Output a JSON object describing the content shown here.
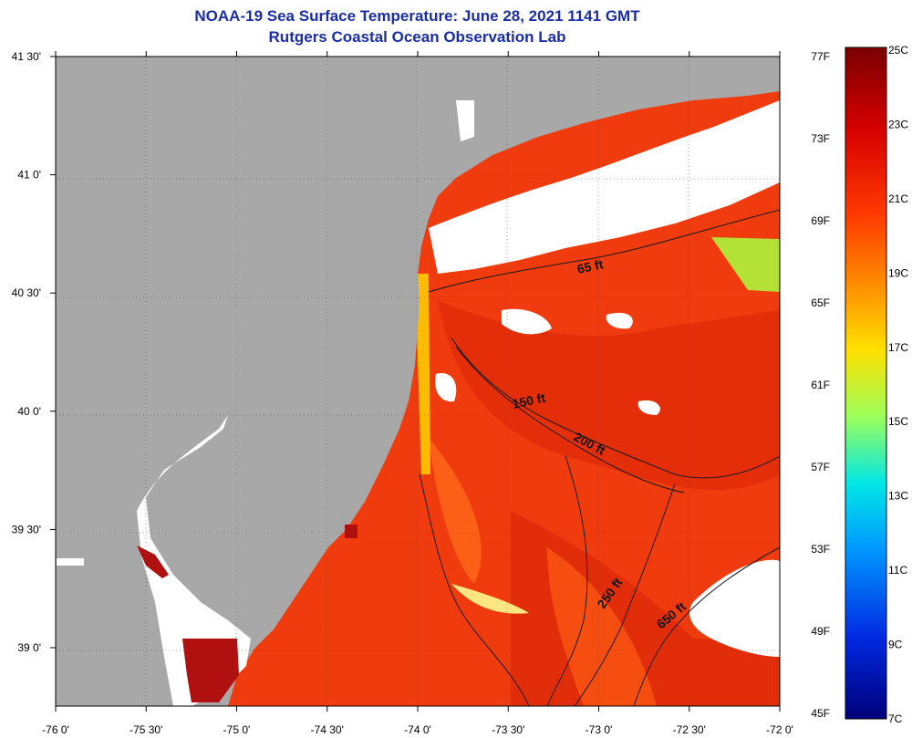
{
  "header": {
    "title": "NOAA-19 Sea Surface Temperature:  June 28, 2021 1141 GMT",
    "subtitle": "Rutgers Coastal Ocean Observation Lab"
  },
  "axes": {
    "lon_ticks": [
      "-76 0'",
      "-75 30'",
      "-75 0'",
      "-74 30'",
      "-74 0'",
      "-73 30'",
      "-73 0'",
      "-72 30'",
      "-72 0'"
    ],
    "lat_ticks": [
      "41 30'",
      "41 0'",
      "40 30'",
      "40 0'",
      "39 30'",
      "39 0'"
    ]
  },
  "contours": {
    "labels": [
      "65 ft",
      "150 ft",
      "200 ft",
      "250 ft",
      "650 ft"
    ]
  },
  "colorbar": {
    "fahrenheit": [
      "77F",
      "73F",
      "69F",
      "65F",
      "61F",
      "57F",
      "53F",
      "49F",
      "45F"
    ],
    "celsius": [
      "25C",
      "23C",
      "21C",
      "19C",
      "17C",
      "15C",
      "13C",
      "11C",
      "9C",
      "7C"
    ]
  },
  "colors": {
    "land": "#a8a8a8",
    "cloud": "#ffffff",
    "sst_dominant": "#f03a10",
    "title_text": "#1a2ea8"
  }
}
